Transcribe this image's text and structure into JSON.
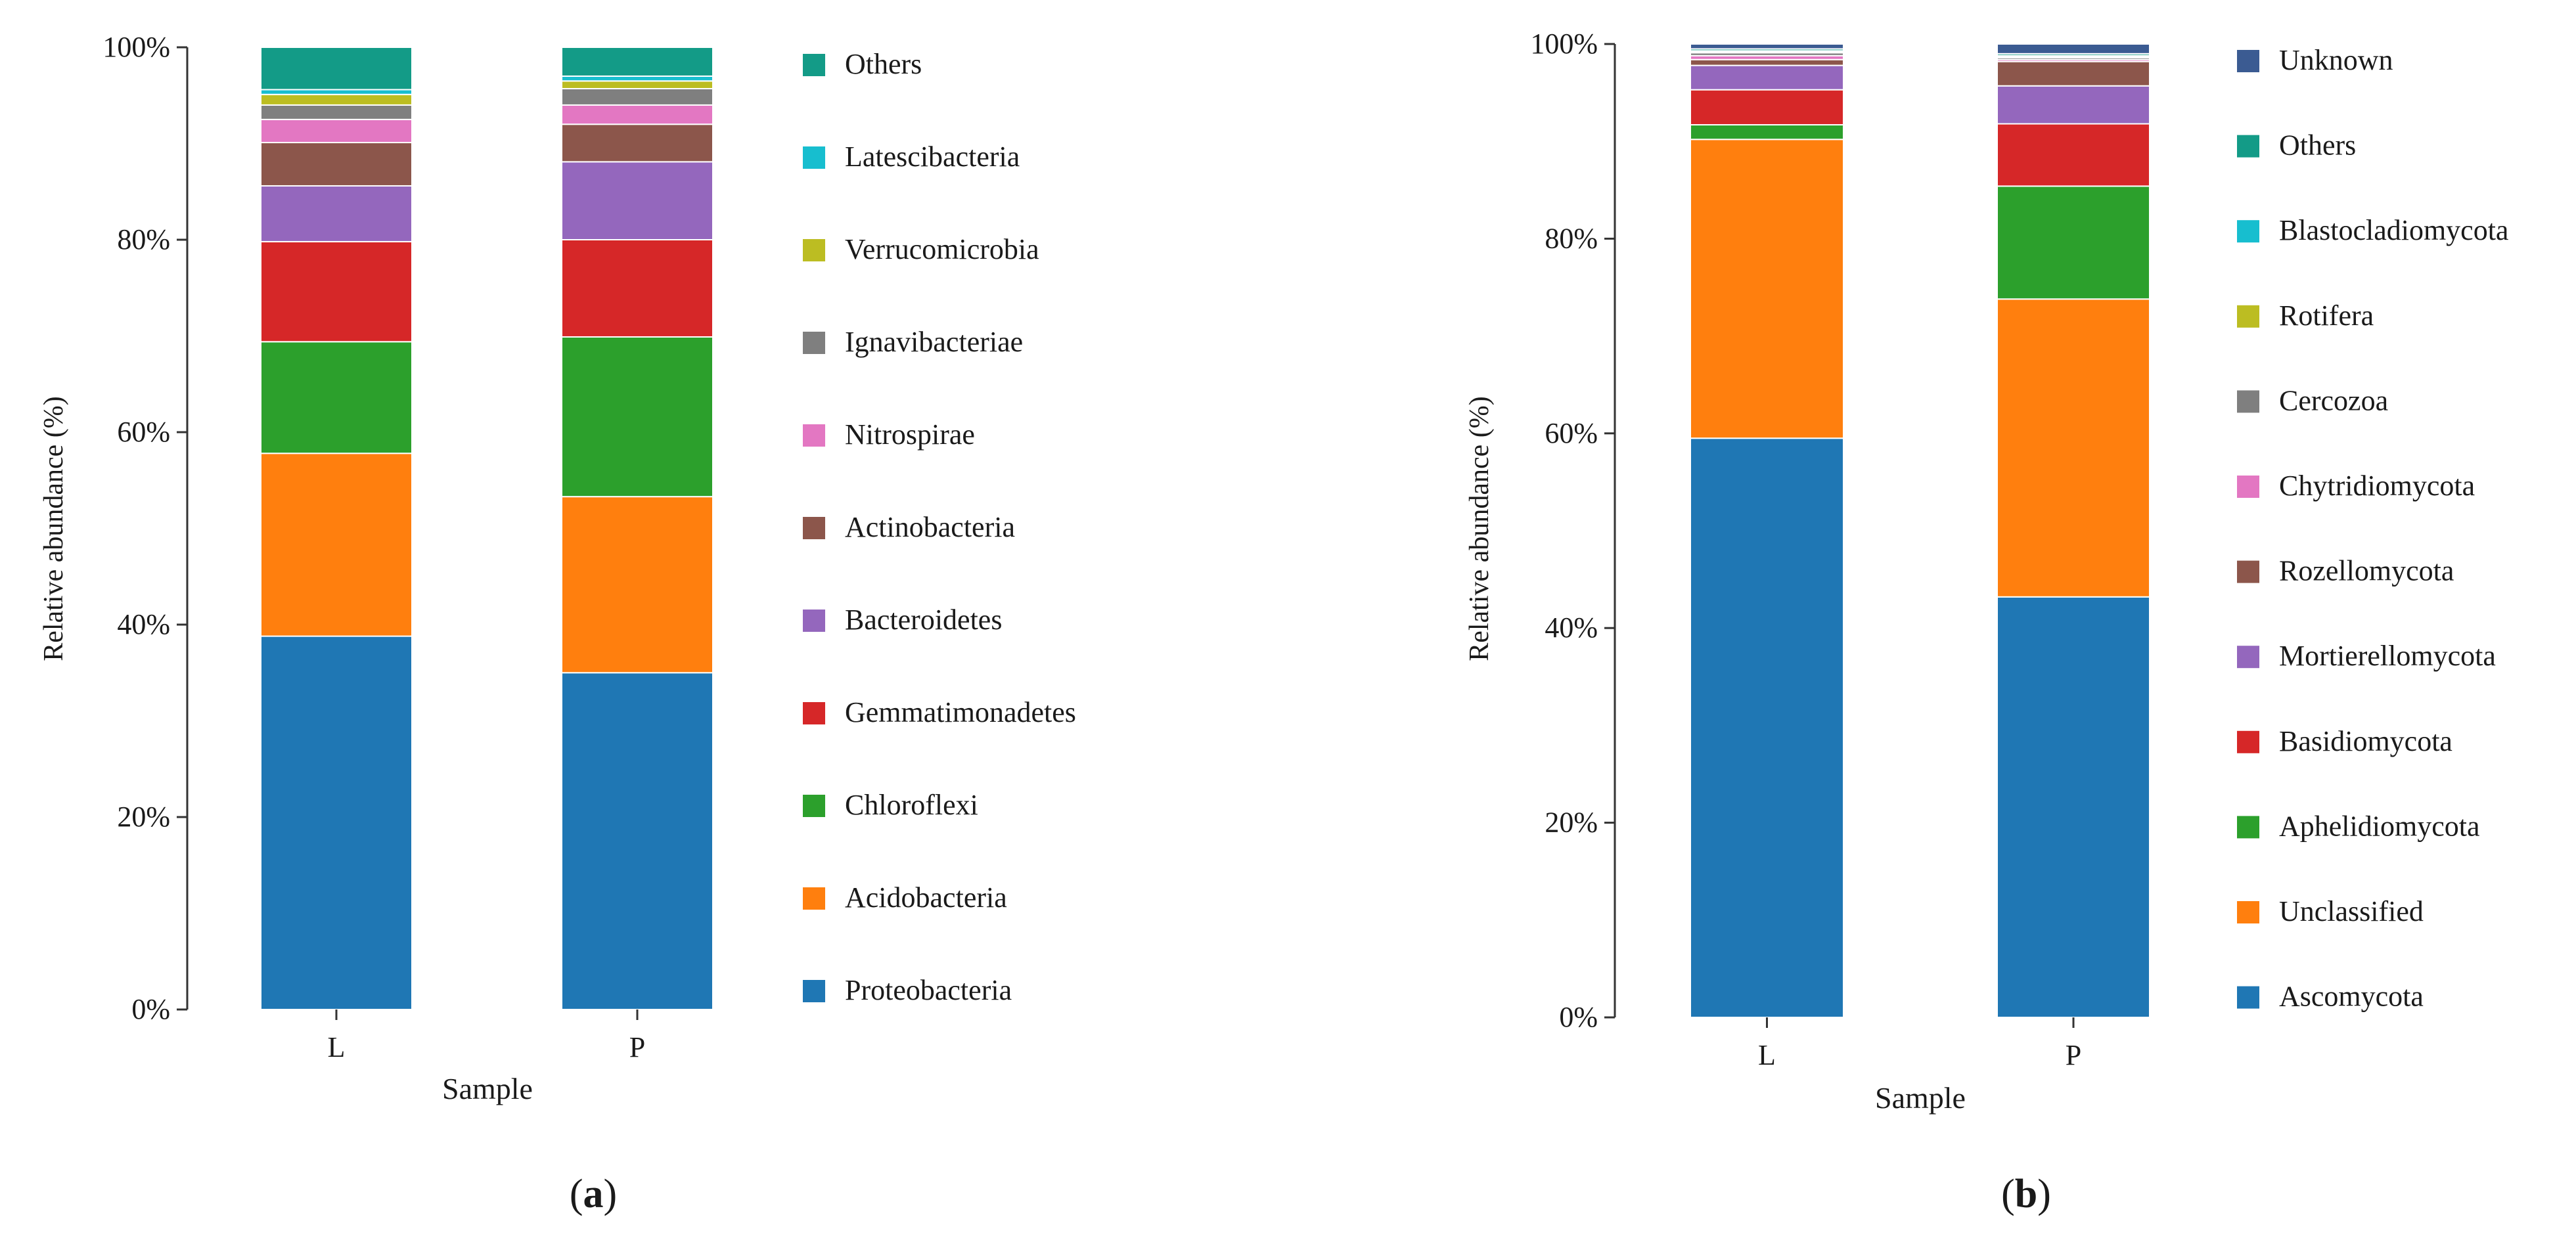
{
  "chart_data": [
    {
      "type": "bar",
      "stacked": true,
      "panel_label": "a",
      "categories": [
        "L",
        "P"
      ],
      "xlabel": "Sample",
      "ylabel": "Relative abundance (%)",
      "ylim": [
        0,
        100
      ],
      "yticks": [
        "0%",
        "20%",
        "40%",
        "60%",
        "80%",
        "100%"
      ],
      "legend_position": "right",
      "series": [
        {
          "name": "Proteobacteria",
          "color": "#1f77b4",
          "values": [
            38.8,
            35.0
          ]
        },
        {
          "name": "Acidobacteria",
          "color": "#ff7f0e",
          "values": [
            19.0,
            18.3
          ]
        },
        {
          "name": "Chloroflexi",
          "color": "#2ca02c",
          "values": [
            11.6,
            16.6
          ]
        },
        {
          "name": "Gemmatimonadetes",
          "color": "#d62728",
          "values": [
            10.4,
            10.1
          ]
        },
        {
          "name": "Bacteroidetes",
          "color": "#9467bd",
          "values": [
            5.8,
            8.1
          ]
        },
        {
          "name": "Actinobacteria",
          "color": "#8c564b",
          "values": [
            4.5,
            3.9
          ]
        },
        {
          "name": "Nitrospirae",
          "color": "#e377c2",
          "values": [
            2.4,
            2.0
          ]
        },
        {
          "name": "Ignavibacteriae",
          "color": "#7f7f7f",
          "values": [
            1.5,
            1.7
          ]
        },
        {
          "name": "Verrucomicrobia",
          "color": "#bcbd22",
          "values": [
            1.1,
            0.8
          ]
        },
        {
          "name": "Latescibacteria",
          "color": "#17becf",
          "values": [
            0.5,
            0.5
          ]
        },
        {
          "name": "Others",
          "color": "#139b87",
          "values": [
            4.4,
            3.0
          ]
        }
      ]
    },
    {
      "type": "bar",
      "stacked": true,
      "panel_label": "b",
      "categories": [
        "L",
        "P"
      ],
      "xlabel": "Sample",
      "ylabel": "Relative abundance (%)",
      "ylim": [
        0,
        100
      ],
      "yticks": [
        "0%",
        "20%",
        "40%",
        "60%",
        "80%",
        "100%"
      ],
      "legend_position": "right",
      "series": [
        {
          "name": "Ascomycota",
          "color": "#1f77b4",
          "values": [
            59.5,
            43.2
          ]
        },
        {
          "name": "Unclassified",
          "color": "#ff7f0e",
          "values": [
            30.7,
            30.6
          ]
        },
        {
          "name": "Aphelidiomycota",
          "color": "#2ca02c",
          "values": [
            1.5,
            11.6
          ]
        },
        {
          "name": "Basidiomycota",
          "color": "#d62728",
          "values": [
            3.6,
            6.4
          ]
        },
        {
          "name": "Mortierellomycota",
          "color": "#9467bd",
          "values": [
            2.5,
            3.9
          ]
        },
        {
          "name": "Rozellomycota",
          "color": "#8c564b",
          "values": [
            0.6,
            2.5
          ]
        },
        {
          "name": "Chytridiomycota",
          "color": "#e377c2",
          "values": [
            0.4,
            0.2
          ]
        },
        {
          "name": "Cercozoa",
          "color": "#7f7f7f",
          "values": [
            0.3,
            0.2
          ]
        },
        {
          "name": "Rotifera",
          "color": "#bcbd22",
          "values": [
            0.1,
            0.1
          ]
        },
        {
          "name": "Blastocladiomycota",
          "color": "#17becf",
          "values": [
            0.1,
            0.1
          ]
        },
        {
          "name": "Others",
          "color": "#139b87",
          "values": [
            0.2,
            0.2
          ]
        },
        {
          "name": "Unknown",
          "color": "#3b5b92",
          "values": [
            0.5,
            1.0
          ]
        }
      ]
    }
  ]
}
